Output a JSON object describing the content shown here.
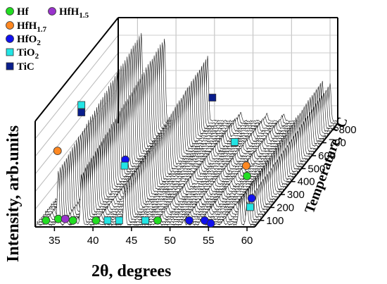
{
  "chart_data": {
    "type": "line",
    "subtype": "3d-waterfall",
    "xlabel": "2θ, degrees",
    "ylabel": "Intensity, arb.units",
    "zlabel": "Temperature, °C",
    "x_ticks": [
      "35",
      "40",
      "45",
      "50",
      "55",
      "60"
    ],
    "z_ticks": [
      "100",
      "200",
      "300",
      "400",
      "500",
      "600",
      "700",
      "800"
    ],
    "xlim": [
      32.5,
      61
    ],
    "zlim": [
      50,
      850
    ],
    "grid": true,
    "legend_position": "top-left",
    "legend": [
      {
        "key": "hf",
        "label": "Hf",
        "sub": "",
        "marker": "circle",
        "color": "#22dd22"
      },
      {
        "key": "hfh15",
        "label": "HfH",
        "sub": "1.5",
        "marker": "circle",
        "color": "#9933cc"
      },
      {
        "key": "hfh17",
        "label": "HfH",
        "sub": "1.7",
        "marker": "circle",
        "color": "#ff8822"
      },
      {
        "key": "hfo2",
        "label": "HfO",
        "sub": "2",
        "marker": "circle",
        "color": "#1111ee"
      },
      {
        "key": "tio2",
        "label": "TiO",
        "sub": "2",
        "marker": "square",
        "color": "#22e5e5"
      },
      {
        "key": "tic",
        "label": "TiC",
        "sub": "",
        "marker": "square",
        "color": "#0a1e8c"
      }
    ],
    "peaks": [
      {
        "two_theta": 33.9,
        "intensity": 4
      },
      {
        "two_theta": 35.5,
        "intensity": 48
      },
      {
        "two_theta": 36.5,
        "intensity": 6
      },
      {
        "two_theta": 37.8,
        "intensity": 4
      },
      {
        "two_theta": 38.5,
        "intensity": 45
      },
      {
        "two_theta": 40.5,
        "intensity": 4
      },
      {
        "two_theta": 44.1,
        "intensity": 35
      },
      {
        "two_theta": 48.4,
        "intensity": 5
      },
      {
        "two_theta": 51.8,
        "intensity": 4
      },
      {
        "two_theta": 54.0,
        "intensity": 4
      },
      {
        "two_theta": 56.9,
        "intensity": 4
      },
      {
        "two_theta": 59.0,
        "intensity": 22
      },
      {
        "two_theta": 60.0,
        "intensity": 20
      }
    ],
    "markers": [
      {
        "phase": "hf",
        "two_theta": 33.9,
        "level": 2
      },
      {
        "phase": "hf",
        "two_theta": 35.5,
        "level": 3
      },
      {
        "phase": "hfh15",
        "two_theta": 36.4,
        "level": 3
      },
      {
        "phase": "hf",
        "two_theta": 37.4,
        "level": 2
      },
      {
        "phase": "hf",
        "two_theta": 40.4,
        "level": 2
      },
      {
        "phase": "tio2",
        "two_theta": 41.9,
        "level": 2
      },
      {
        "phase": "tio2",
        "two_theta": 43.4,
        "level": 2
      },
      {
        "phase": "tio2",
        "two_theta": 46.8,
        "level": 2
      },
      {
        "phase": "hf",
        "two_theta": 48.4,
        "level": 2
      },
      {
        "phase": "hfo2",
        "two_theta": 52.5,
        "level": 2
      },
      {
        "phase": "hfo2",
        "two_theta": 54.5,
        "level": 2
      },
      {
        "phase": "hfo2",
        "two_theta": 55.3,
        "level": 0
      },
      {
        "phase": "hfh17",
        "two_theta": 35.4,
        "level": 49
      },
      {
        "phase": "tio2",
        "two_theta": 38.5,
        "level": 80
      },
      {
        "phase": "tic",
        "two_theta": 38.5,
        "level": 75
      },
      {
        "phase": "hfo2",
        "two_theta": 44.2,
        "level": 43
      },
      {
        "phase": "tio2",
        "two_theta": 44.1,
        "level": 39
      },
      {
        "phase": "tic",
        "two_theta": 55.5,
        "level": 85
      },
      {
        "phase": "tio2",
        "two_theta": 58.4,
        "level": 55
      },
      {
        "phase": "hfh17",
        "two_theta": 59.9,
        "level": 39
      },
      {
        "phase": "hf",
        "two_theta": 60.0,
        "level": 32
      },
      {
        "phase": "hfo2",
        "two_theta": 60.6,
        "level": 17
      },
      {
        "phase": "tio2",
        "two_theta": 60.4,
        "level": 11
      }
    ]
  }
}
